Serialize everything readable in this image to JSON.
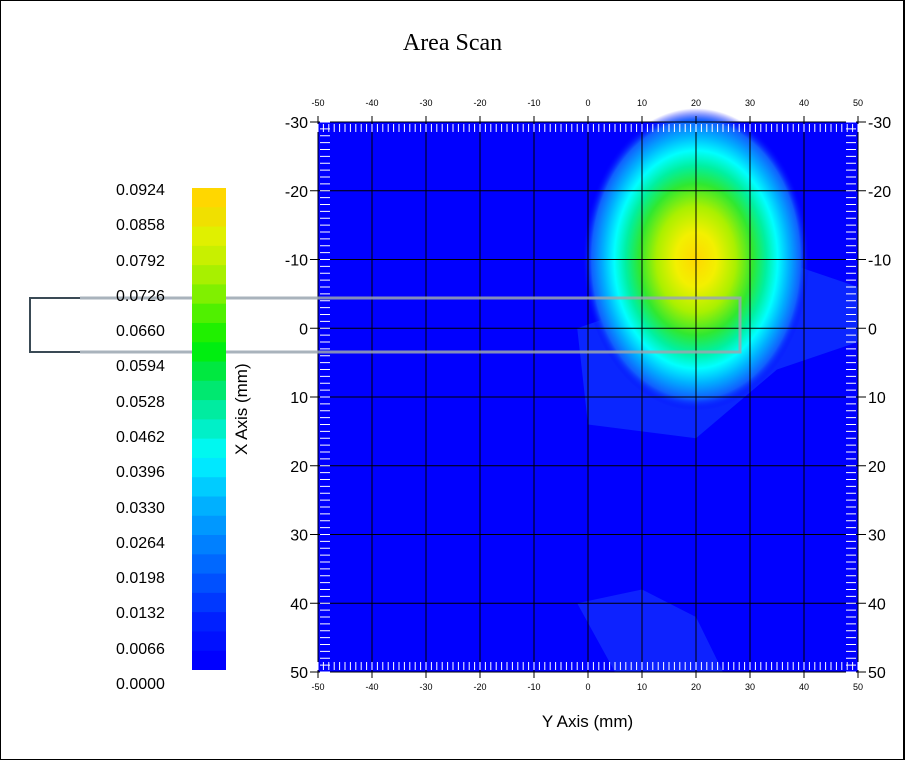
{
  "chart_data": {
    "type": "heatmap",
    "title": "Area Scan",
    "xlabel": "Y Axis (mm)",
    "ylabel": "X Axis (mm)",
    "x_ticks": [
      -50,
      -40,
      -30,
      -20,
      -10,
      0,
      10,
      20,
      30,
      40,
      50
    ],
    "y_ticks": [
      -30,
      -20,
      -10,
      0,
      10,
      20,
      30,
      40,
      50
    ],
    "xlim": [
      -50,
      50
    ],
    "ylim": [
      -30,
      50
    ],
    "grid": true,
    "colorbar": {
      "min": 0.0,
      "max": 0.0924,
      "labels": [
        "0.0924",
        "0.0858",
        "0.0792",
        "0.0726",
        "0.0660",
        "0.0594",
        "0.0528",
        "0.0462",
        "0.0396",
        "0.0330",
        "0.0264",
        "0.0198",
        "0.0132",
        "0.0066",
        "0.0000"
      ]
    },
    "peak": {
      "y": 20,
      "x": -10,
      "value": 0.0924
    },
    "field_points": [
      {
        "y": 20,
        "x": -10,
        "value": 0.0924
      },
      {
        "y": 20,
        "x": 0,
        "value": 0.06
      },
      {
        "y": 20,
        "x": -20,
        "value": 0.062
      },
      {
        "y": 10,
        "x": -10,
        "value": 0.066
      },
      {
        "y": 30,
        "x": -10,
        "value": 0.058
      },
      {
        "y": 10,
        "x": 0,
        "value": 0.04
      },
      {
        "y": 30,
        "x": 0,
        "value": 0.03
      },
      {
        "y": 20,
        "x": 10,
        "value": 0.018
      },
      {
        "y": 10,
        "x": -30,
        "value": 0.028
      },
      {
        "y": 30,
        "x": -30,
        "value": 0.02
      }
    ]
  },
  "colors": {
    "background_field": "#0000ff",
    "peak": "#ffd700",
    "grid": "#000000"
  }
}
